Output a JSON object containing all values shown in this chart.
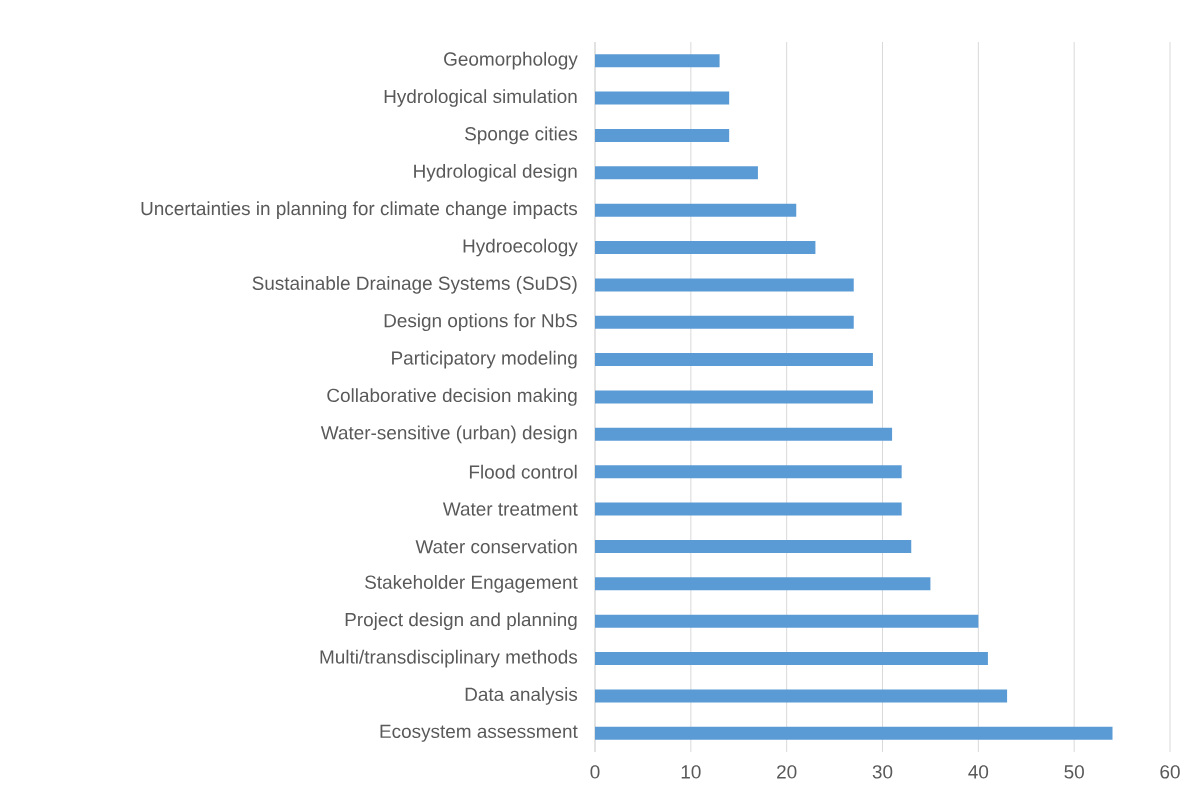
{
  "chart_data": {
    "type": "bar",
    "orientation": "horizontal",
    "categories": [
      "Geomorphology",
      "Hydrological simulation",
      "Sponge cities",
      "Hydrological design",
      "Uncertainties in planning for climate change impacts",
      "Hydroecology",
      "Sustainable Drainage Systems (SuDS)",
      "Design options for NbS",
      "Participatory modeling",
      "Collaborative decision making",
      "Water-sensitive (urban) design",
      "Flood control",
      "Water treatment",
      "Water conservation",
      "Stakeholder Engagement",
      "Project design and planning",
      "Multi/transdisciplinary methods",
      "Data analysis",
      "Ecosystem assessment"
    ],
    "values": [
      13,
      14,
      14,
      17,
      21,
      23,
      27,
      27,
      29,
      29,
      31,
      32,
      32,
      33,
      35,
      40,
      41,
      43,
      54
    ],
    "color": "#5b9bd5",
    "xlim": [
      0,
      60
    ],
    "xticks": [
      0,
      10,
      20,
      30,
      40,
      50,
      60
    ],
    "grid": "x"
  }
}
